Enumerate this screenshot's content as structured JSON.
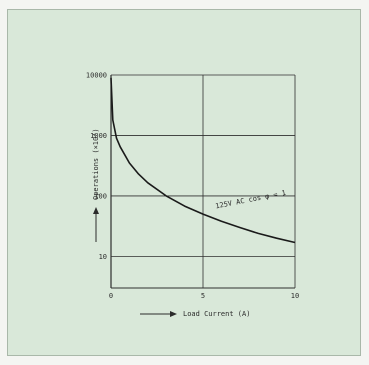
{
  "chart_data": {
    "type": "line",
    "title": "",
    "xlabel": "Load Current (A)",
    "ylabel": "Operations (×10⁴)",
    "x_scale": "linear",
    "y_scale": "log",
    "xlim": [
      0,
      10
    ],
    "ylim": [
      3,
      10000
    ],
    "x_ticks": [
      "0",
      "5",
      "10"
    ],
    "y_ticks": [
      "10000",
      "1000",
      "100",
      "10"
    ],
    "x_tick_values": [
      0,
      5,
      10
    ],
    "y_tick_values": [
      10000,
      1000,
      100,
      10
    ],
    "grid": true,
    "series": [
      {
        "name": "125V AC cos φ = 1",
        "x": [
          0.0,
          0.1,
          0.3,
          0.5,
          1.0,
          1.5,
          2.0,
          3.0,
          4.0,
          5.0,
          6.0,
          7.0,
          8.0,
          9.0,
          10.0
        ],
        "y": [
          9000,
          1800,
          900,
          650,
          350,
          230,
          165,
          100,
          68,
          50,
          38,
          30,
          24,
          20,
          17
        ]
      }
    ]
  },
  "colors": {
    "background": "#d9e8d9",
    "line": "#1a1a1a",
    "grid": "#2f2f2f"
  }
}
